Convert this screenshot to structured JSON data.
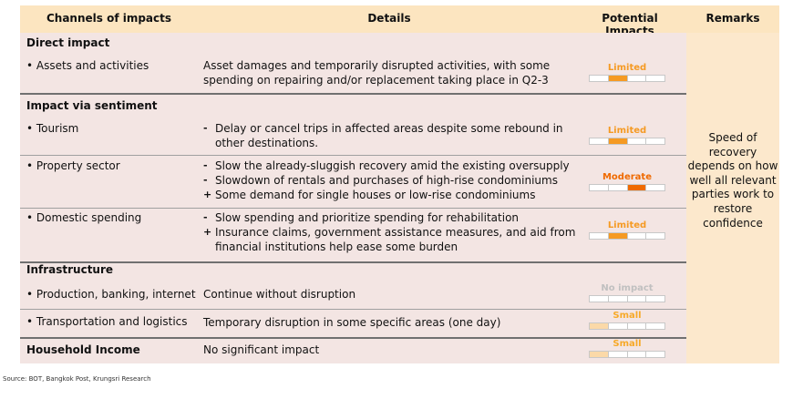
{
  "header": {
    "channels": "Channels of impacts",
    "details": "Details",
    "impacts": "Potential Impacts",
    "remarks": "Remarks"
  },
  "colors": {
    "header_bg": "#fce5c0",
    "body_bg": "#f3e5e3",
    "remarks_bg": "#fce8cc",
    "limited": "#f59a23",
    "moderate": "#ef6a00",
    "small": "#f7a928",
    "small_fill": "#fbd9a8",
    "no_impact": "#c0c0c0"
  },
  "remarks_text": "Speed of recovery depends on how well all relevant parties work to restore confidence",
  "sections": {
    "direct": "Direct impact",
    "sentiment": "Impact via sentiment",
    "infrastructure": "Infrastructure",
    "household": "Household Income"
  },
  "rows": [
    {
      "channel": "• Assets and activities",
      "details": [
        {
          "marker": "",
          "text": "Asset damages and temporarily disrupted activities, with some"
        },
        {
          "marker": "",
          "text": "spending on repairing and/or replacement taking place in Q2-3"
        }
      ],
      "impact": "Limited",
      "level": 1,
      "color": "limited",
      "segments": 4
    },
    {
      "channel": "• Tourism",
      "details": [
        {
          "marker": "-",
          "text": "Delay or cancel trips in affected areas despite  some rebound in"
        },
        {
          "marker": "",
          "text": "other destinations."
        }
      ],
      "impact": "Limited",
      "level": 1,
      "color": "limited",
      "segments": 4
    },
    {
      "channel": "• Property sector",
      "details": [
        {
          "marker": "-",
          "text": "Slow the already-sluggish recovery amid the existing oversupply"
        },
        {
          "marker": "-",
          "text": "Slowdown of rentals and purchases of high-rise condominiums"
        },
        {
          "marker": "+",
          "text": "Some demand for single houses or low-rise condominiums"
        }
      ],
      "impact": "Moderate",
      "level": 2,
      "color": "moderate",
      "segments": 4
    },
    {
      "channel": "• Domestic spending",
      "details": [
        {
          "marker": "-",
          "text": "Slow spending and prioritize spending for rehabilitation"
        },
        {
          "marker": "+",
          "text": "Insurance claims, government assistance measures, and aid from"
        },
        {
          "marker": "",
          "text": "financial institutions help ease some burden"
        }
      ],
      "impact": "Limited",
      "level": 1,
      "color": "limited",
      "segments": 4
    },
    {
      "channel": "• Production, banking, internet",
      "details": [
        {
          "marker": "",
          "text": "Continue without disruption"
        }
      ],
      "impact": "No impact",
      "level": -1,
      "color": "no_impact",
      "segments": 4
    },
    {
      "channel": "• Transportation and logistics",
      "details": [
        {
          "marker": "",
          "text": "Temporary disruption in some specific areas (one day)"
        }
      ],
      "impact": "Small",
      "level": 0,
      "color": "small",
      "segments": 4
    },
    {
      "channel": "",
      "details": [
        {
          "marker": "",
          "text": "No significant impact"
        }
      ],
      "impact": "Small",
      "level": 0,
      "color": "small",
      "segments": 4
    }
  ],
  "source": "Source: BOT, Bangkok Post, Krungsri Research"
}
